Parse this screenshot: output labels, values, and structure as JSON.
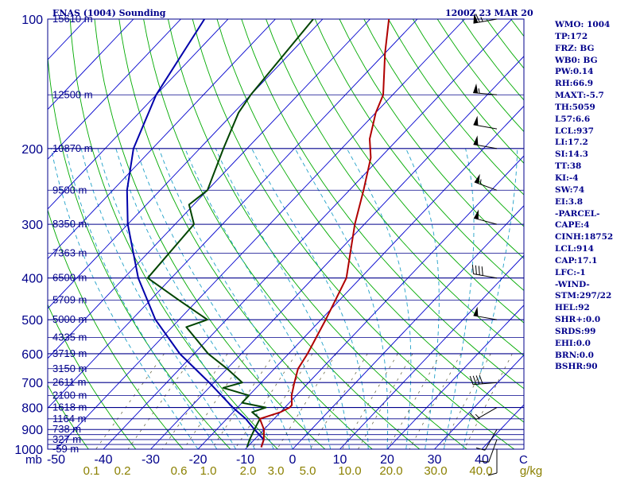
{
  "header": {
    "title": "ENAS (1004) Sounding",
    "valid_time": "1200Z 23 MAR 20"
  },
  "indices": [
    "WMO: 1004",
    "TP:172",
    "FRZ: BG",
    "WB0: BG",
    "PW:0.14",
    "RH:66.9",
    "MAXT:-5.7",
    "TH:5059",
    "L57:6.6",
    "LCL:937",
    "LI:17.2",
    "SI:14.3",
    "TT:38",
    "KI:-4",
    "SW:74",
    "EI:3.8",
    "-PARCEL-",
    "CAPE:4",
    "CINH:18752",
    "LCL:914",
    "CAP:17.1",
    "LFC:-1",
    "-WIND-",
    "STM:297/22",
    "HEL:92",
    "SHR+:0.0",
    "SRDS:99",
    "EHI:0.0",
    "BRN:0.0",
    "BSHR:90"
  ],
  "colors": {
    "isobar": "#00008b",
    "isotherm": "#0000cd",
    "dry_adiabat": "#00aa00",
    "moist_adiabat": "#1fa0c8",
    "mixing_ratio": "#6b6b4a",
    "temperature": "#b00000",
    "dewpoint": "#004400",
    "parcel": "#0000aa",
    "mixing_ratio_labels": "#8b8000"
  },
  "chart_data": {
    "type": "line",
    "title": "ENAS (1004) Sounding",
    "subtitle": "1200Z 23 MAR 20",
    "x_unit_label": "C",
    "y_unit_label": "mb",
    "pressure_ticks": [
      100,
      200,
      300,
      400,
      500,
      600,
      700,
      800,
      900,
      1000
    ],
    "pressure_levels": [
      100,
      150,
      200,
      250,
      300,
      350,
      400,
      450,
      500,
      550,
      600,
      650,
      700,
      750,
      800,
      850,
      900,
      925,
      950,
      975,
      1000
    ],
    "temperature_ticks": [
      -50,
      -40,
      -30,
      -20,
      -10,
      0,
      10,
      20,
      30,
      40
    ],
    "temperature_tick_labels": [
      "-50",
      "-40",
      "-30",
      "-20",
      "-10",
      "0",
      "10",
      "20",
      "30",
      "40"
    ],
    "mixing_ratio_labels": [
      "0.1",
      "0.2",
      "0.6",
      "1.0",
      "2.0",
      "3.0",
      "5.0",
      "10.0",
      "20.0",
      "30.0",
      "40.0",
      "g/kg"
    ],
    "height_labels": [
      {
        "text": "15610 m",
        "p": 100
      },
      {
        "text": "12500 m",
        "p": 150
      },
      {
        "text": "10870 m",
        "p": 200
      },
      {
        "text": "9500 m",
        "p": 250
      },
      {
        "text": "8350 m",
        "p": 300
      },
      {
        "text": "7363 m",
        "p": 350
      },
      {
        "text": "6500 m",
        "p": 400
      },
      {
        "text": "5709 m",
        "p": 450
      },
      {
        "text": "5000 m",
        "p": 500
      },
      {
        "text": "4335 m",
        "p": 550
      },
      {
        "text": "3719 m",
        "p": 600
      },
      {
        "text": "3150 m",
        "p": 650
      },
      {
        "text": "2611 m",
        "p": 700
      },
      {
        "text": "2100 m",
        "p": 750
      },
      {
        "text": "1618 m",
        "p": 800
      },
      {
        "text": "1164 m",
        "p": 850
      },
      {
        "text": "738 m",
        "p": 900
      },
      {
        "text": "327 m",
        "p": 950
      },
      {
        "text": "-59 m",
        "p": 1000
      }
    ],
    "temperature": {
      "name": "Temperature",
      "points": [
        [
          100,
          -66
        ],
        [
          120,
          -60
        ],
        [
          150,
          -52
        ],
        [
          165,
          -50
        ],
        [
          190,
          -46
        ],
        [
          210,
          -42
        ],
        [
          250,
          -37
        ],
        [
          300,
          -32
        ],
        [
          400,
          -23
        ],
        [
          500,
          -19
        ],
        [
          600,
          -16
        ],
        [
          650,
          -15
        ],
        [
          700,
          -13
        ],
        [
          750,
          -11
        ],
        [
          790,
          -9
        ],
        [
          800,
          -9
        ],
        [
          820,
          -10
        ],
        [
          850,
          -13
        ],
        [
          900,
          -10
        ],
        [
          950,
          -8
        ],
        [
          990,
          -7
        ]
      ]
    },
    "dewpoint": {
      "name": "Dewpoint",
      "points": [
        [
          100,
          -82
        ],
        [
          150,
          -80
        ],
        [
          165,
          -79
        ],
        [
          200,
          -75
        ],
        [
          250,
          -70
        ],
        [
          270,
          -71
        ],
        [
          300,
          -66
        ],
        [
          400,
          -65
        ],
        [
          450,
          -54
        ],
        [
          500,
          -44
        ],
        [
          520,
          -47
        ],
        [
          600,
          -37
        ],
        [
          650,
          -30
        ],
        [
          700,
          -24
        ],
        [
          720,
          -27
        ],
        [
          750,
          -20
        ],
        [
          780,
          -20
        ],
        [
          800,
          -14
        ],
        [
          820,
          -16
        ],
        [
          850,
          -13
        ],
        [
          900,
          -12
        ],
        [
          950,
          -11
        ],
        [
          990,
          -10
        ]
      ]
    },
    "parcel": {
      "name": "Parcel",
      "points": [
        [
          100,
          -105
        ],
        [
          150,
          -100
        ],
        [
          200,
          -94
        ],
        [
          250,
          -87
        ],
        [
          300,
          -80
        ],
        [
          400,
          -67
        ],
        [
          500,
          -55
        ],
        [
          600,
          -43
        ],
        [
          700,
          -31
        ],
        [
          800,
          -21
        ],
        [
          850,
          -16
        ],
        [
          900,
          -12
        ],
        [
          950,
          -8
        ],
        [
          990,
          -7
        ]
      ]
    },
    "wind_barbs": [
      {
        "p": 100,
        "dir": 260,
        "speed": 65
      },
      {
        "p": 150,
        "dir": 275,
        "speed": 55
      },
      {
        "p": 180,
        "dir": 280,
        "speed": 50
      },
      {
        "p": 200,
        "dir": 280,
        "speed": 50
      },
      {
        "p": 250,
        "dir": 290,
        "speed": 55
      },
      {
        "p": 300,
        "dir": 285,
        "speed": 50
      },
      {
        "p": 400,
        "dir": 280,
        "speed": 40
      },
      {
        "p": 500,
        "dir": 280,
        "speed": 50
      },
      {
        "p": 700,
        "dir": 265,
        "speed": 40
      },
      {
        "p": 800,
        "dir": 240,
        "speed": 15
      },
      {
        "p": 900,
        "dir": 210,
        "speed": 10
      },
      {
        "p": 950,
        "dir": 200,
        "speed": 10
      },
      {
        "p": 1000,
        "dir": 180,
        "speed": 10
      }
    ]
  }
}
